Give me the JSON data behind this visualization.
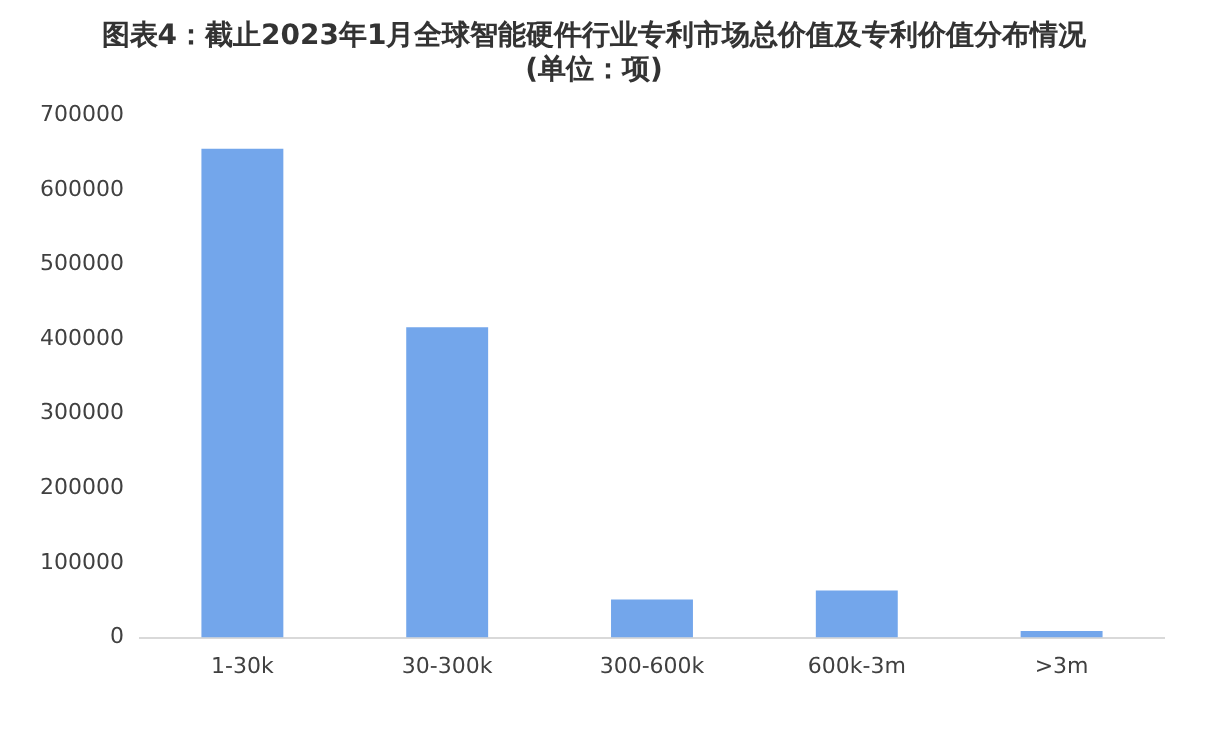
{
  "chart_data": {
    "type": "bar",
    "title": "图表4：截止2023年1月全球智能硬件行业专利市场总价值及专利价值分布情况\n(单位：项)",
    "categories": [
      "1-30k",
      "30-300k",
      "300-600k",
      "600k-3m",
      ">3m"
    ],
    "values": [
      655000,
      416000,
      51000,
      63000,
      9000
    ],
    "color": "#73a6eb",
    "ylim": [
      0,
      700000
    ],
    "yticks": [
      0,
      100000,
      200000,
      300000,
      400000,
      500000,
      600000,
      700000
    ],
    "grid": false,
    "legend": false
  }
}
